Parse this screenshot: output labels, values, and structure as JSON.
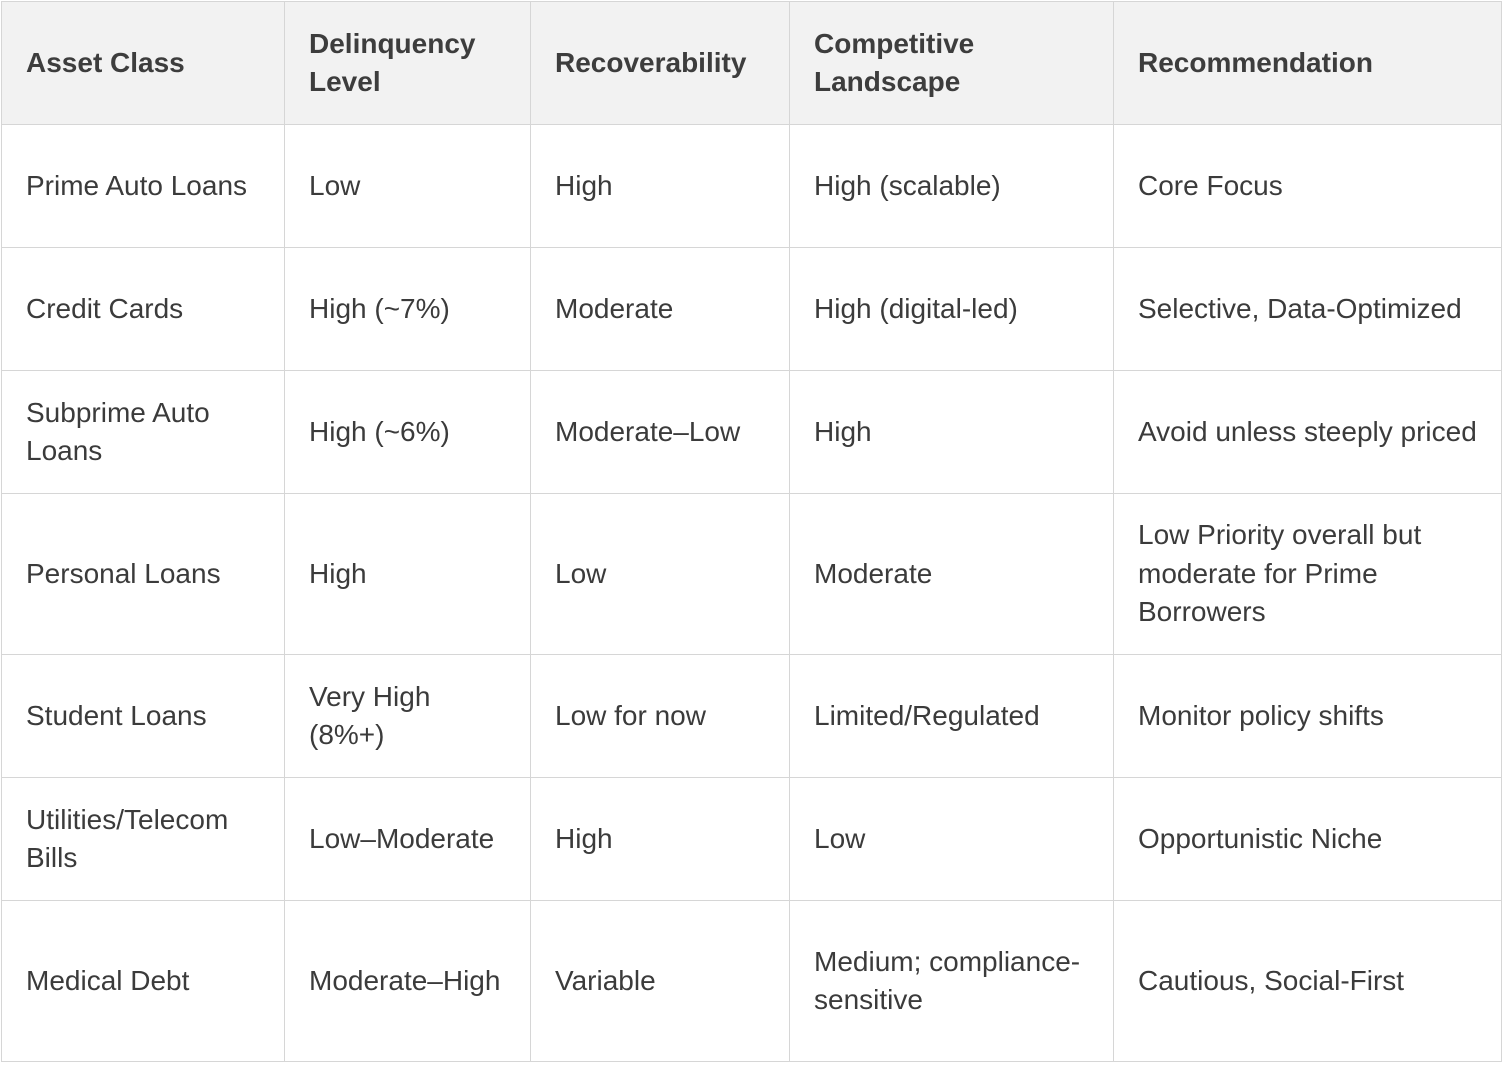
{
  "table": {
    "headers": [
      "Asset Class",
      "Delinquency Level",
      "Recoverability",
      "Competitive Landscape",
      "Recommendation"
    ],
    "rows": [
      [
        "Prime Auto Loans",
        "Low",
        "High",
        "High (scalable)",
        "Core Focus"
      ],
      [
        "Credit Cards",
        "High (~7%)",
        "Moderate",
        "High (digital-led)",
        "Selective, Data-Optimized"
      ],
      [
        "Subprime Auto Loans",
        "High (~6%)",
        "Moderate–Low",
        "High",
        "Avoid unless steeply priced"
      ],
      [
        "Personal Loans",
        "High",
        "Low",
        "Moderate",
        "Low Priority overall but moderate for Prime Borrowers"
      ],
      [
        "Student Loans",
        "Very High (8%+)",
        "Low for now",
        "Limited/Regulated",
        "Monitor policy shifts"
      ],
      [
        "Utilities/Telecom Bills",
        "Low–Moderate",
        "High",
        "Low",
        "Opportunistic Niche"
      ],
      [
        "Medical Debt",
        "Moderate–High",
        "Variable",
        "Medium; compliance-sensitive",
        "Cautious, Social-First"
      ]
    ]
  }
}
